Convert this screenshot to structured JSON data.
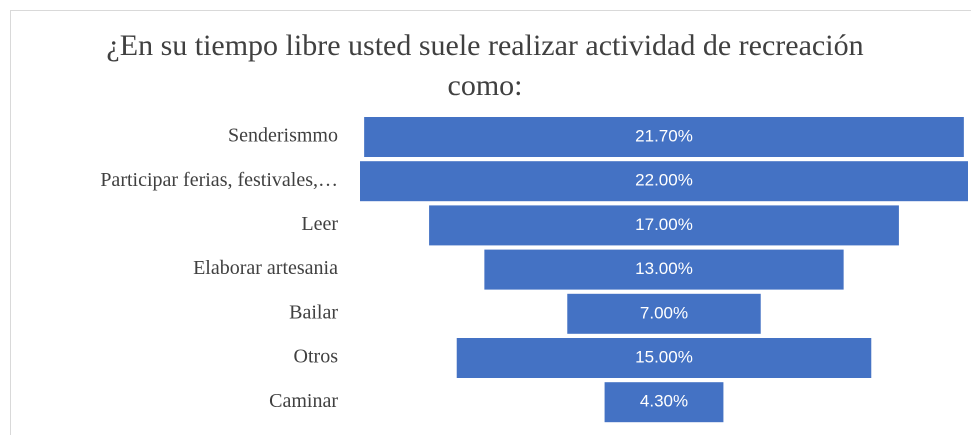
{
  "chart_data": {
    "type": "funnel",
    "title": "¿En su tiempo libre usted suele realizar actividad de recreación como:",
    "categories": [
      "Senderismmo",
      "Participar ferias, festivales,…",
      "Leer",
      "Elaborar artesania",
      "Bailar",
      "Otros",
      "Caminar"
    ],
    "values": [
      21.7,
      22,
      17,
      13,
      7,
      15,
      4.3
    ],
    "value_labels": [
      "21.70%",
      "22.00%",
      "17.00%",
      "13.00%",
      "7.00%",
      "15.00%",
      "4.30%"
    ],
    "color": "#4472c4"
  }
}
